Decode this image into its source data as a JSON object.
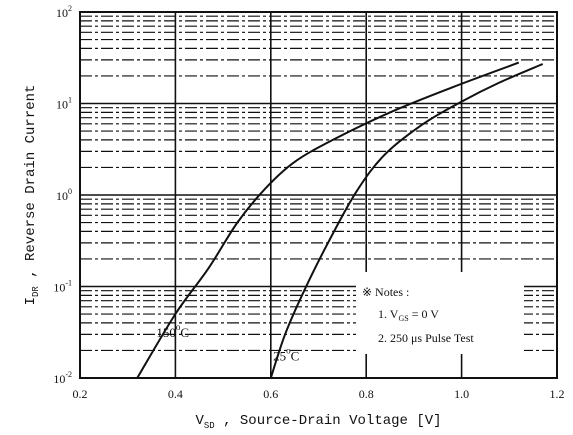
{
  "chart_data": {
    "type": "line",
    "xlabel": {
      "main": "V",
      "sub": "SD",
      "rest": " ,  Source-Drain Voltage    [V]"
    },
    "ylabel": {
      "main": "I",
      "sub": "DR",
      "rest": " ,   Reverse  Drain  Current"
    },
    "xlim": [
      0.2,
      1.2
    ],
    "ylim": [
      0.01,
      100
    ],
    "yscale": "log",
    "x_ticks": [
      "0.2",
      "0.4",
      "0.6",
      "0.8",
      "1.0",
      "1.2"
    ],
    "y_ticks": [
      {
        "base": "10",
        "exp": "-2"
      },
      {
        "base": "10",
        "exp": "-1"
      },
      {
        "base": "10",
        "exp": "0"
      },
      {
        "base": "10",
        "exp": "1"
      },
      {
        "base": "10",
        "exp": "2"
      }
    ],
    "grid": "major solid, minor dashed",
    "series": [
      {
        "name": "150 °C",
        "x": [
          0.32,
          0.4,
          0.47,
          0.53,
          0.59,
          0.65,
          0.73,
          0.85,
          0.98,
          1.12
        ],
        "y": [
          0.01,
          0.05,
          0.16,
          0.5,
          1.2,
          2.3,
          4.0,
          8.0,
          15.0,
          28.0
        ]
      },
      {
        "name": "25 °C",
        "x": [
          0.6,
          0.63,
          0.67,
          0.72,
          0.78,
          0.84,
          0.92,
          1.0,
          1.08,
          1.17
        ],
        "y": [
          0.01,
          0.03,
          0.09,
          0.3,
          1.1,
          2.8,
          6.0,
          10.5,
          17.0,
          27.0
        ]
      }
    ],
    "annotations": [
      {
        "text": "150",
        "sup": "o",
        "after": "C",
        "at": [
          0.36,
          0.028
        ]
      },
      {
        "text": "25",
        "sup": "o",
        "after": "C",
        "at": [
          0.605,
          0.0155
        ]
      }
    ],
    "notes": {
      "title": "※ Notes :",
      "line1": {
        "prefix": "1.  V",
        "sub": "GS",
        "suffix": " = 0 V"
      },
      "line2": "2.  250 μs Pulse Test"
    }
  }
}
